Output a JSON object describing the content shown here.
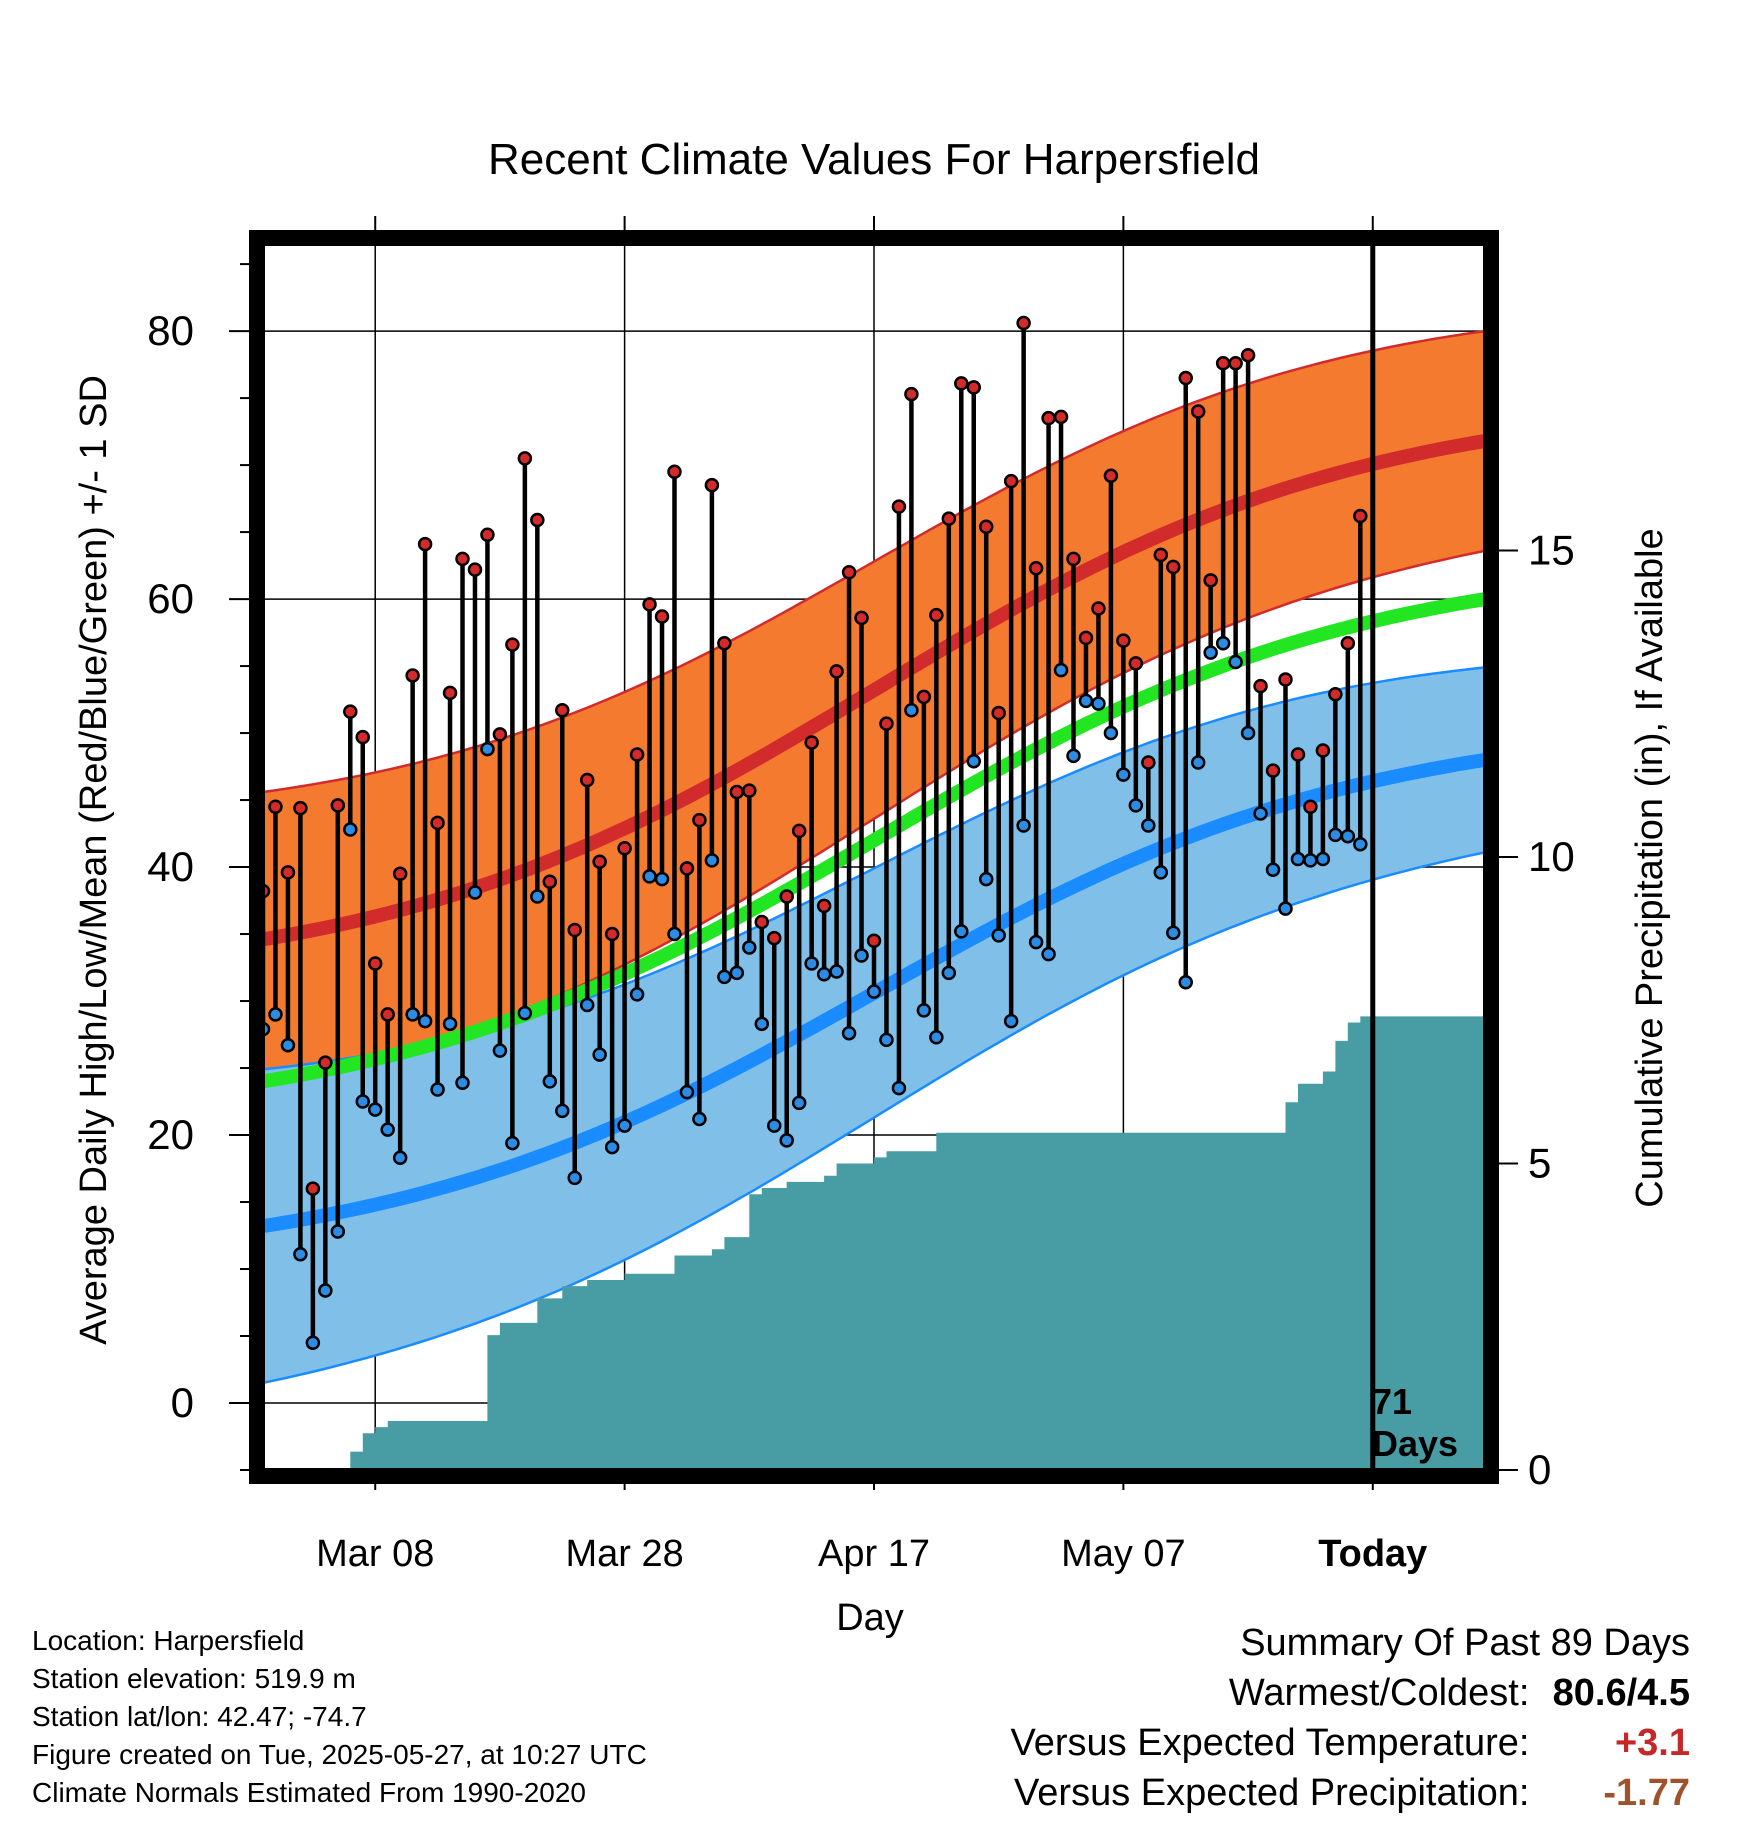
{
  "chart_data": {
    "type": "line",
    "title": "Recent Climate Values For Harpersfield",
    "xlabel": "Day",
    "ylabel": "Average Daily High/Low/Mean (Red/Blue/Green) +/- 1 SD",
    "ylabel_right": "Cumulative Precipitation (in), If Available",
    "ylim": [
      -5,
      86.5
    ],
    "y_ticks": [
      0,
      20,
      40,
      60,
      80
    ],
    "y2lim": [
      0,
      20
    ],
    "y2_ticks": [
      0,
      5,
      10,
      15
    ],
    "x_range_days_before_today": [
      89,
      -9
    ],
    "x_ticks": [
      {
        "label": "Mar 08",
        "days_before_today": 80
      },
      {
        "label": "Mar 28",
        "days_before_today": 60
      },
      {
        "label": "Apr 17",
        "days_before_today": 40
      },
      {
        "label": "May 07",
        "days_before_today": 20
      },
      {
        "label": "Today",
        "days_before_today": 0
      }
    ],
    "today_marker_label": [
      "71",
      "Days"
    ],
    "grid": true,
    "colors": {
      "high_band": "#f47a30",
      "high_line": "#d22b2b",
      "low_band": "#80c0e8",
      "low_line": "#1a8cff",
      "mean_line": "#22e622",
      "precip": "#489ca4",
      "high_dot": "#d42a2a",
      "low_dot": "#2c8ce4"
    },
    "normals": {
      "high_mean": {
        "start": 34.6,
        "end": 71.8
      },
      "high_sd": {
        "start": 11.0,
        "end": 8.2
      },
      "low_mean": {
        "start": 13.2,
        "end": 48.0
      },
      "low_sd": {
        "start": 11.7,
        "end": 6.9
      },
      "mean": {
        "start": 24.0,
        "end": 60.0
      }
    },
    "daily": {
      "high": [
        38.2,
        44.5,
        39.6,
        44.4,
        16.0,
        25.4,
        44.6,
        51.6,
        49.7,
        32.8,
        29.0,
        39.5,
        54.3,
        64.1,
        43.3,
        53.0,
        63.0,
        62.2,
        64.8,
        49.9,
        56.6,
        70.5,
        65.9,
        38.9,
        51.7,
        35.3,
        46.5,
        40.4,
        35.0,
        41.4,
        48.4,
        59.6,
        58.7,
        69.5,
        39.9,
        43.5,
        68.5,
        56.7,
        45.6,
        45.7,
        35.9,
        34.7,
        37.8,
        42.7,
        49.3,
        37.1,
        54.6,
        62.0,
        58.6,
        34.5,
        50.7,
        66.9,
        75.3,
        52.7,
        58.8,
        66.0,
        76.1,
        75.8,
        65.4,
        51.5,
        68.8,
        80.6,
        62.3,
        73.5,
        73.6,
        63.0,
        57.1,
        59.3,
        69.2,
        56.9,
        55.2,
        47.8,
        63.3,
        62.4,
        76.5,
        74.0,
        61.4,
        77.6,
        77.6,
        78.2,
        53.5,
        47.2,
        54.0,
        48.4,
        44.5,
        48.7,
        52.9,
        56.7,
        66.2
      ],
      "low": [
        27.9,
        29.0,
        26.7,
        11.1,
        4.5,
        8.4,
        12.8,
        42.8,
        22.5,
        21.9,
        20.4,
        18.3,
        29.0,
        28.5,
        23.4,
        28.3,
        23.9,
        38.1,
        48.8,
        26.3,
        19.4,
        29.1,
        37.8,
        24.0,
        21.8,
        16.8,
        29.7,
        26.0,
        19.1,
        20.7,
        30.5,
        39.3,
        39.1,
        35.0,
        23.2,
        21.2,
        40.5,
        31.8,
        32.1,
        34.0,
        28.3,
        20.7,
        19.6,
        22.4,
        32.8,
        32.0,
        32.2,
        27.6,
        33.4,
        30.7,
        27.1,
        23.5,
        51.7,
        29.3,
        27.3,
        32.1,
        35.2,
        47.9,
        39.1,
        34.9,
        28.5,
        43.1,
        34.4,
        33.5,
        54.7,
        48.3,
        52.4,
        52.2,
        50.0,
        46.9,
        44.6,
        43.1,
        39.6,
        35.1,
        31.4,
        47.8,
        56.0,
        56.7,
        55.3,
        50.0,
        44.0,
        39.8,
        36.9,
        40.6,
        40.5,
        40.6,
        42.4,
        42.3,
        41.7
      ]
    },
    "cumulative_precip": [
      0,
      0,
      0,
      0,
      0,
      0,
      0,
      0.3,
      0.6,
      0.7,
      0.8,
      0.8,
      0.8,
      0.8,
      0.8,
      0.8,
      0.8,
      0.8,
      2.2,
      2.4,
      2.4,
      2.4,
      2.8,
      2.8,
      3.0,
      3.0,
      3.1,
      3.1,
      3.1,
      3.2,
      3.2,
      3.2,
      3.2,
      3.5,
      3.5,
      3.5,
      3.6,
      3.8,
      3.8,
      4.5,
      4.6,
      4.6,
      4.7,
      4.7,
      4.7,
      4.8,
      5.0,
      5.0,
      5.0,
      5.1,
      5.2,
      5.2,
      5.2,
      5.2,
      5.5,
      5.5,
      5.5,
      5.5,
      5.5,
      5.5,
      5.5,
      5.5,
      5.5,
      5.5,
      5.5,
      5.5,
      5.5,
      5.5,
      5.5,
      5.5,
      5.5,
      5.5,
      5.5,
      5.5,
      5.5,
      5.5,
      5.5,
      5.5,
      5.5,
      5.5,
      5.5,
      5.5,
      6.0,
      6.3,
      6.3,
      6.5,
      7.0,
      7.3,
      7.4,
      7.4
    ],
    "precip_end": 7.4
  },
  "info": {
    "location": "Location: Harpersfield",
    "elevation": "Station elevation: 519.9 m",
    "latlon": "Station lat/lon: 42.47; -74.7",
    "created": "Figure created on Tue, 2025-05-27, at 10:27 UTC",
    "normals": "Climate Normals Estimated From 1990-2020"
  },
  "summary": {
    "title": "Summary Of Past 89 Days",
    "warmest_coldest_label": "Warmest/Coldest:",
    "warmest_coldest_value": "80.6/4.5",
    "temp_label": "Versus Expected Temperature:",
    "temp_value": "+3.1",
    "temp_color": "#c62828",
    "precip_label": "Versus Expected Precipitation:",
    "precip_value": "-1.77",
    "precip_color": "#a0522d"
  }
}
